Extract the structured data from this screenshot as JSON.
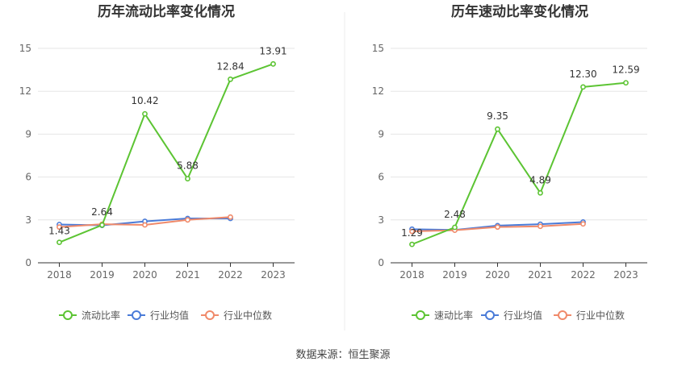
{
  "charts": [
    {
      "type": "line",
      "title": "历年流动比率变化情况",
      "categories": [
        "2018",
        "2019",
        "2020",
        "2021",
        "2022",
        "2023"
      ],
      "ylim": [
        0,
        15
      ],
      "yticks": [
        "0",
        "3",
        "6",
        "9",
        "12",
        "15"
      ],
      "grid": true,
      "legend_placement": "bottom",
      "series": [
        {
          "name": "流动比率",
          "color": "#5cc433",
          "values": [
            1.43,
            2.64,
            10.42,
            5.88,
            12.84,
            13.91
          ],
          "labels": [
            "1.43",
            "2.64",
            "10.42",
            "5.88",
            "12.84",
            "13.91"
          ]
        },
        {
          "name": "行业均值",
          "color": "#4a7bd8",
          "values": [
            2.68,
            2.62,
            2.9,
            3.1,
            3.1,
            null
          ]
        },
        {
          "name": "行业中位数",
          "color": "#f08a6a",
          "values": [
            2.5,
            2.7,
            2.65,
            3.0,
            3.2,
            null
          ]
        }
      ]
    },
    {
      "type": "line",
      "title": "历年速动比率变化情况",
      "categories": [
        "2018",
        "2019",
        "2020",
        "2021",
        "2022",
        "2023"
      ],
      "ylim": [
        0,
        15
      ],
      "yticks": [
        "0",
        "3",
        "6",
        "9",
        "12",
        "15"
      ],
      "grid": true,
      "legend_placement": "bottom",
      "series": [
        {
          "name": "速动比率",
          "color": "#5cc433",
          "values": [
            1.29,
            2.48,
            9.35,
            4.89,
            12.3,
            12.59
          ],
          "labels": [
            "1.29",
            "2.48",
            "9.35",
            "4.89",
            "12.30",
            "12.59"
          ]
        },
        {
          "name": "行业均值",
          "color": "#4a7bd8",
          "values": [
            2.35,
            2.3,
            2.6,
            2.7,
            2.85,
            null
          ]
        },
        {
          "name": "行业中位数",
          "color": "#f08a6a",
          "values": [
            2.2,
            2.28,
            2.5,
            2.55,
            2.72,
            null
          ]
        }
      ]
    }
  ],
  "footer": "数据来源：恒生聚源"
}
